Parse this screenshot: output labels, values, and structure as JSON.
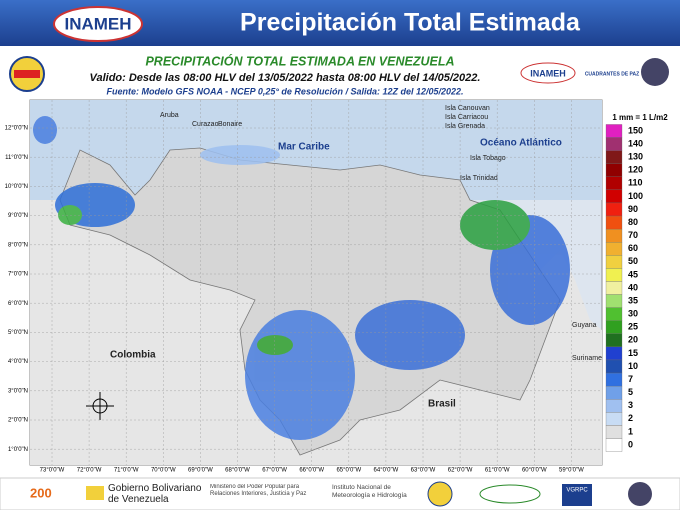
{
  "header": {
    "title": "Precipitación Total Estimada",
    "logo": "INAMEH"
  },
  "subtitle": {
    "title": "PRECIPITACIÓN TOTAL ESTIMADA EN VENEZUELA",
    "valid": "Valido: Desde las 08:00 HLV del 13/05/2022 hasta 08:00 HLV del 14/05/2022.",
    "source": "Fuente: Modelo GFS NOAA - NCEP 0,25° de Resolución / Salida: 12Z del 12/05/2022.",
    "logo": "INAMEH",
    "logo2": "CUADRANTES DE PAZ"
  },
  "map": {
    "lat_ticks": [
      "12°0'0\"N",
      "11°0'0\"N",
      "10°0'0\"N",
      "9°0'0\"N",
      "8°0'0\"N",
      "7°0'0\"N",
      "6°0'0\"N",
      "5°0'0\"N",
      "4°0'0\"N",
      "3°0'0\"N",
      "2°0'0\"N",
      "1°0'0\"N"
    ],
    "lon_ticks": [
      "73°0'0\"W",
      "72°0'0\"W",
      "71°0'0\"W",
      "70°0'0\"W",
      "69°0'0\"W",
      "68°0'0\"W",
      "67°0'0\"W",
      "66°0'0\"W",
      "65°0'0\"W",
      "64°0'0\"W",
      "63°0'0\"W",
      "62°0'0\"W",
      "61°0'0\"W",
      "60°0'0\"W",
      "59°0'0\"W"
    ],
    "places": [
      "Aruba",
      "Curazao",
      "Bonaire",
      "Mar Caribe",
      "Océano Atlántico",
      "Isla Canouvan",
      "Isla Carriacou",
      "Isla Grenada",
      "Isla Tobago",
      "Isla Trinidad",
      "Colombia",
      "Brasil",
      "Guyana",
      "Suriname"
    ]
  },
  "legend": {
    "title": "1 mm = 1 L/m2",
    "levels": [
      {
        "label": "150",
        "color": "#e020c0"
      },
      {
        "label": "140",
        "color": "#a03070"
      },
      {
        "label": "130",
        "color": "#801818"
      },
      {
        "label": "120",
        "color": "#900000"
      },
      {
        "label": "110",
        "color": "#b00000"
      },
      {
        "label": "100",
        "color": "#d00000"
      },
      {
        "label": "90",
        "color": "#f02010"
      },
      {
        "label": "80",
        "color": "#f05010"
      },
      {
        "label": "70",
        "color": "#f09020"
      },
      {
        "label": "60",
        "color": "#f0b030"
      },
      {
        "label": "50",
        "color": "#f0d040"
      },
      {
        "label": "45",
        "color": "#f0f050"
      },
      {
        "label": "40",
        "color": "#f0f0a0"
      },
      {
        "label": "35",
        "color": "#a0e070"
      },
      {
        "label": "30",
        "color": "#50c030"
      },
      {
        "label": "25",
        "color": "#30a020"
      },
      {
        "label": "20",
        "color": "#207020"
      },
      {
        "label": "15",
        "color": "#2040d0"
      },
      {
        "label": "10",
        "color": "#2050b0"
      },
      {
        "label": "7",
        "color": "#3070e0"
      },
      {
        "label": "5",
        "color": "#70a0e8"
      },
      {
        "label": "3",
        "color": "#a0c0f0"
      },
      {
        "label": "2",
        "color": "#c8dcf4"
      },
      {
        "label": "1",
        "color": "#e0e0e0"
      },
      {
        "label": "0",
        "color": "#ffffff"
      }
    ]
  },
  "footer": {
    "gov": "Gobierno Bolivariano de Venezuela",
    "ministry": "Ministerio del Poder Popular para Relaciones Interiores, Justicia y Paz",
    "institute": "Instituto Nacional de Meteorología e Hidrología",
    "vgrpc": "VGRPC"
  }
}
